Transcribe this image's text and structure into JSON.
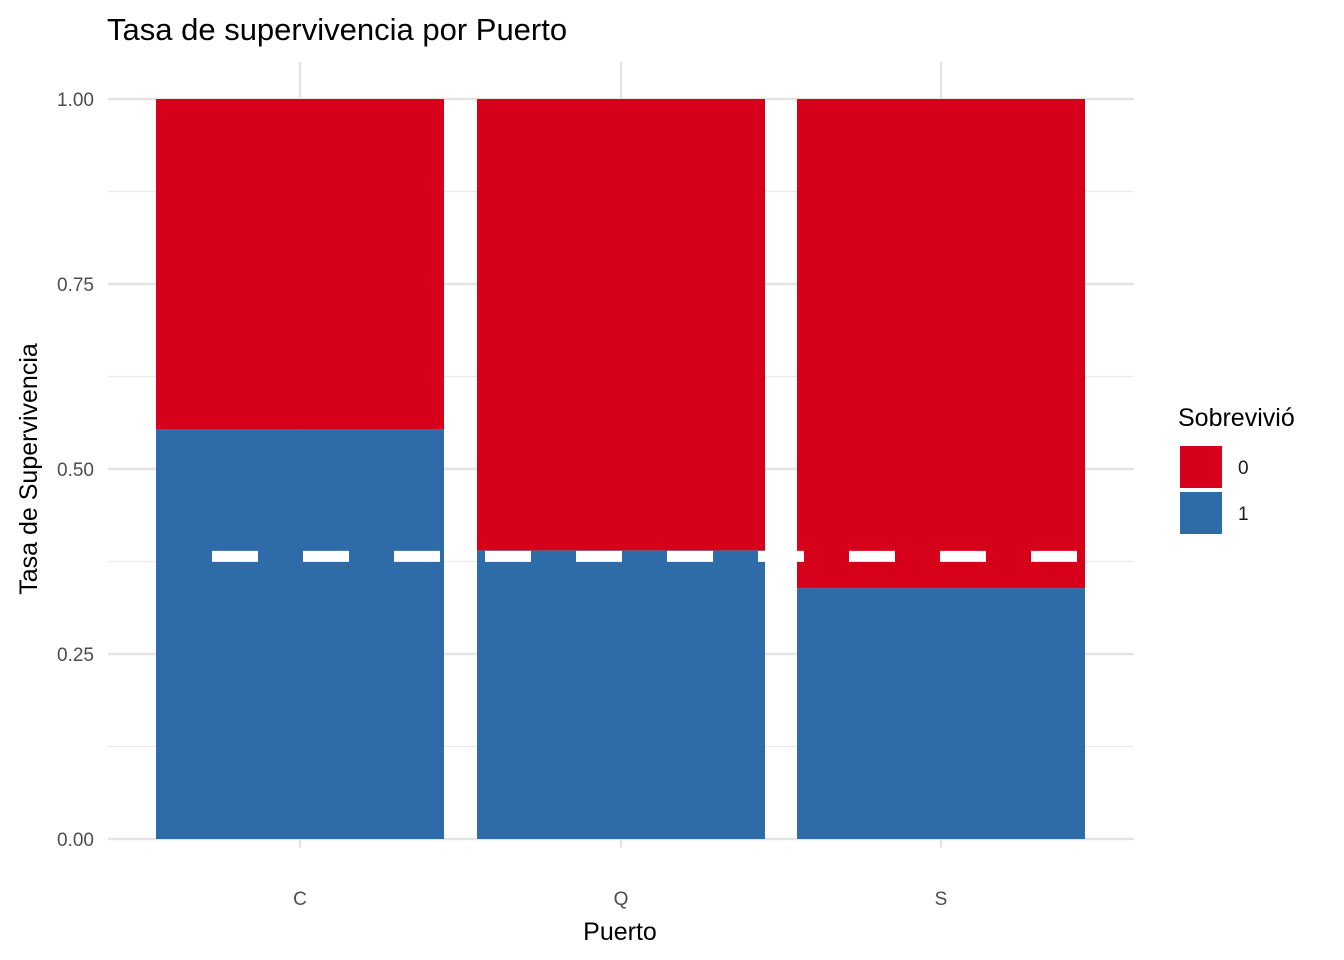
{
  "chart_data": {
    "type": "bar",
    "stacked": true,
    "title": "Tasa de supervivencia por Puerto",
    "xlabel": "Puerto",
    "ylabel": "Tasa de Supervivencia",
    "categories": [
      "C",
      "Q",
      "S"
    ],
    "y_ticks": [
      "0.00",
      "0.25",
      "0.50",
      "0.75",
      "1.00"
    ],
    "ylim": [
      0,
      1
    ],
    "grid": true,
    "legend": {
      "title": "Sobrevivió",
      "placement": "right",
      "entries": [
        {
          "label": "0",
          "color": "#D7001A"
        },
        {
          "label": "1",
          "color": "#2E6BA9"
        }
      ]
    },
    "series": [
      {
        "name": "1",
        "color": "#2E6BA9",
        "values": [
          0.554,
          0.39,
          0.339
        ]
      },
      {
        "name": "0",
        "color": "#D7001A",
        "values": [
          0.446,
          0.61,
          0.661
        ]
      }
    ],
    "reference_line": {
      "y": 0.382,
      "style": "dashed",
      "color": "#ffffff"
    }
  }
}
